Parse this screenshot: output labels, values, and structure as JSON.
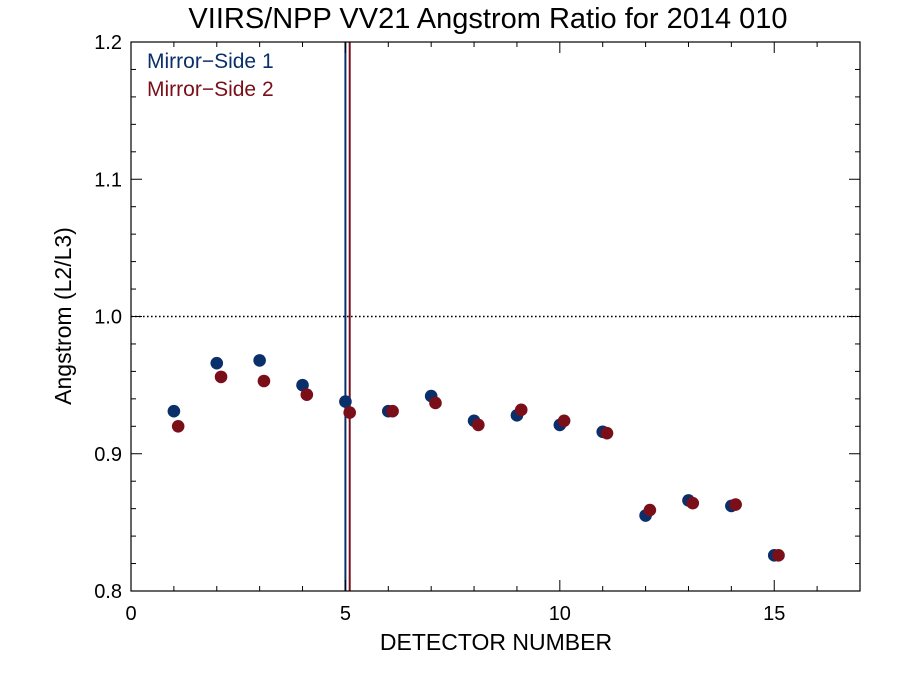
{
  "chart_data": {
    "type": "scatter",
    "title": "VIIRS/NPP VV21 Angstrom Ratio for 2014 010",
    "xlabel": "DETECTOR NUMBER",
    "ylabel": "Angstrom (L2/L3)",
    "xlim": [
      0,
      17
    ],
    "ylim": [
      0.8,
      1.2
    ],
    "x_ticks": [
      0,
      5,
      10,
      15
    ],
    "x_tick_labels": [
      "0",
      "5",
      "10",
      "15"
    ],
    "y_ticks": [
      0.8,
      0.9,
      1.0,
      1.1,
      1.2
    ],
    "y_tick_labels": [
      "0.8",
      "0.9",
      "1.0",
      "1.1",
      "1.2"
    ],
    "reference_line_y": 1.0,
    "legend_position": "top-left",
    "grid": false,
    "series": [
      {
        "name": "Mirror−Side 1",
        "color": "#0b2f6b",
        "x": [
          1,
          2,
          3,
          4,
          5,
          6,
          7,
          8,
          9,
          10,
          11,
          12,
          13,
          14,
          15
        ],
        "y": [
          0.931,
          0.966,
          0.968,
          0.95,
          0.938,
          0.931,
          0.942,
          0.924,
          0.928,
          0.921,
          0.916,
          0.855,
          0.866,
          0.862,
          0.826
        ],
        "vertical_line_x": 5.0
      },
      {
        "name": "Mirror−Side 2",
        "color": "#7a0f1a",
        "x": [
          1.1,
          2.1,
          3.1,
          4.1,
          5.1,
          6.1,
          7.1,
          8.1,
          9.1,
          10.1,
          11.1,
          12.1,
          13.1,
          14.1,
          15.1
        ],
        "y": [
          0.92,
          0.956,
          0.953,
          0.943,
          0.93,
          0.931,
          0.937,
          0.921,
          0.932,
          0.924,
          0.915,
          0.859,
          0.864,
          0.863,
          0.826
        ],
        "vertical_line_x": 5.1
      }
    ]
  }
}
